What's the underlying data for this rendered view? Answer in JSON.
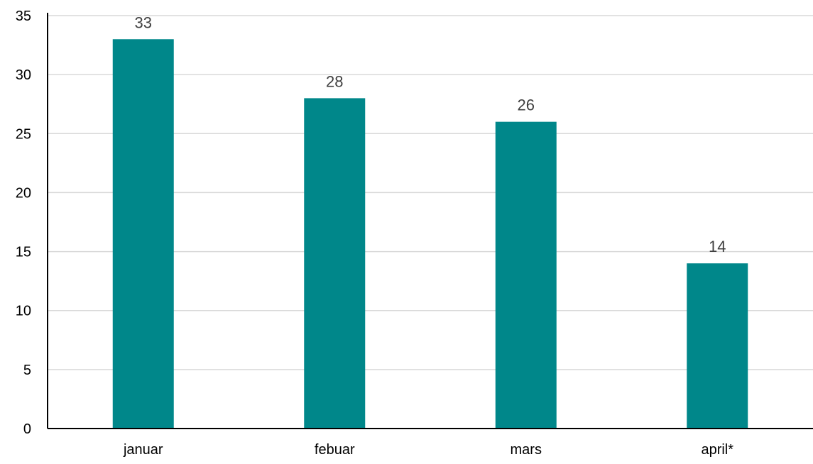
{
  "chart_data": {
    "type": "bar",
    "categories": [
      "januar",
      "febuar",
      "mars",
      "april*"
    ],
    "values": [
      33,
      28,
      26,
      14
    ],
    "ylim": [
      0,
      35
    ],
    "yticks": [
      0,
      5,
      10,
      15,
      20,
      25,
      30,
      35
    ],
    "grid": true,
    "data_labels": true,
    "bar_color": "#00878A",
    "title": "",
    "xlabel": "",
    "ylabel": ""
  }
}
